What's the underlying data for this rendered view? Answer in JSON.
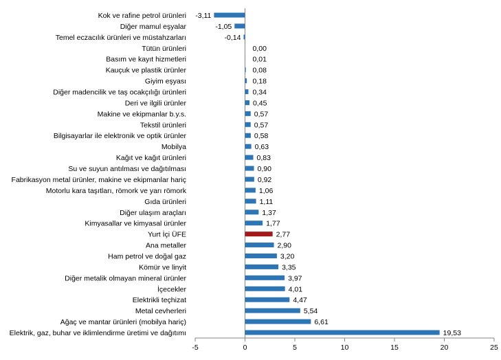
{
  "chart_data": {
    "type": "bar",
    "orientation": "horizontal",
    "title": "",
    "xlabel": "",
    "ylabel": "",
    "xlim": [
      -5,
      25
    ],
    "xticks": [
      -5,
      0,
      5,
      10,
      15,
      20,
      25
    ],
    "grid": false,
    "legend": "none",
    "colors": {
      "default": "#2E75B6",
      "highlight": "#A31A1A"
    },
    "highlight_category": "Yurt İçi ÜFE",
    "categories": [
      "Kok ve rafine petrol ürünleri",
      "Diğer mamul eşyalar",
      "Temel eczacılık ürünleri ve müstahzarları",
      "Tütün ürünleri",
      "Basım ve kayıt hizmetleri",
      "Kauçuk ve plastik ürünler",
      "Giyim eşyası",
      "Diğer madencilik ve taş ocakçılığı ürünleri",
      "Deri ve ilgili ürünler",
      "Makine ve ekipmanlar b.y.s.",
      "Tekstil ürünleri",
      "Bilgisayarlar ile elektronik ve optik ürünler",
      "Mobilya",
      "Kağıt ve kağıt ürünleri",
      "Su ve suyun antılması ve dağıtılması",
      "Fabrikasyon metal ürünler, makine ve ekipmanlar hariç",
      "Motorlu kara taşıtları, römork ve yarı römork",
      "Gıda ürünleri",
      "Diğer ulaşım araçları",
      "Kimyasallar ve kimyasal ürünler",
      "Yurt İçi ÜFE",
      "Ana metaller",
      "Ham petrol ve doğal gaz",
      "Kömür ve linyit",
      "Diğer metalik olmayan mineral ürünler",
      "İçecekler",
      "Elektrikli teçhizat",
      "Metal cevherleri",
      "Ağaç ve mantar ürünleri (mobilya hariç)",
      "Elektrik, gaz, buhar ve iklimlendirme üretimi ve dağıtımı"
    ],
    "values": [
      -3.11,
      -1.05,
      -0.14,
      0.0,
      0.01,
      0.08,
      0.18,
      0.34,
      0.45,
      0.57,
      0.57,
      0.58,
      0.63,
      0.83,
      0.9,
      0.92,
      1.06,
      1.11,
      1.37,
      1.77,
      2.77,
      2.9,
      3.2,
      3.35,
      3.97,
      4.01,
      4.47,
      5.54,
      6.61,
      19.53
    ],
    "data_labels": [
      "-3,11",
      "-1,05",
      "-0,14",
      "0,00",
      "0,01",
      "0,08",
      "0,18",
      "0,34",
      "0,45",
      "0,57",
      "0,57",
      "0,58",
      "0,63",
      "0,83",
      "0,90",
      "0,92",
      "1,06",
      "1,11",
      "1,37",
      "1,77",
      "2,77",
      "2,90",
      "3,20",
      "3,35",
      "3,97",
      "4,01",
      "4,47",
      "5,54",
      "6,61",
      "19,53"
    ]
  }
}
